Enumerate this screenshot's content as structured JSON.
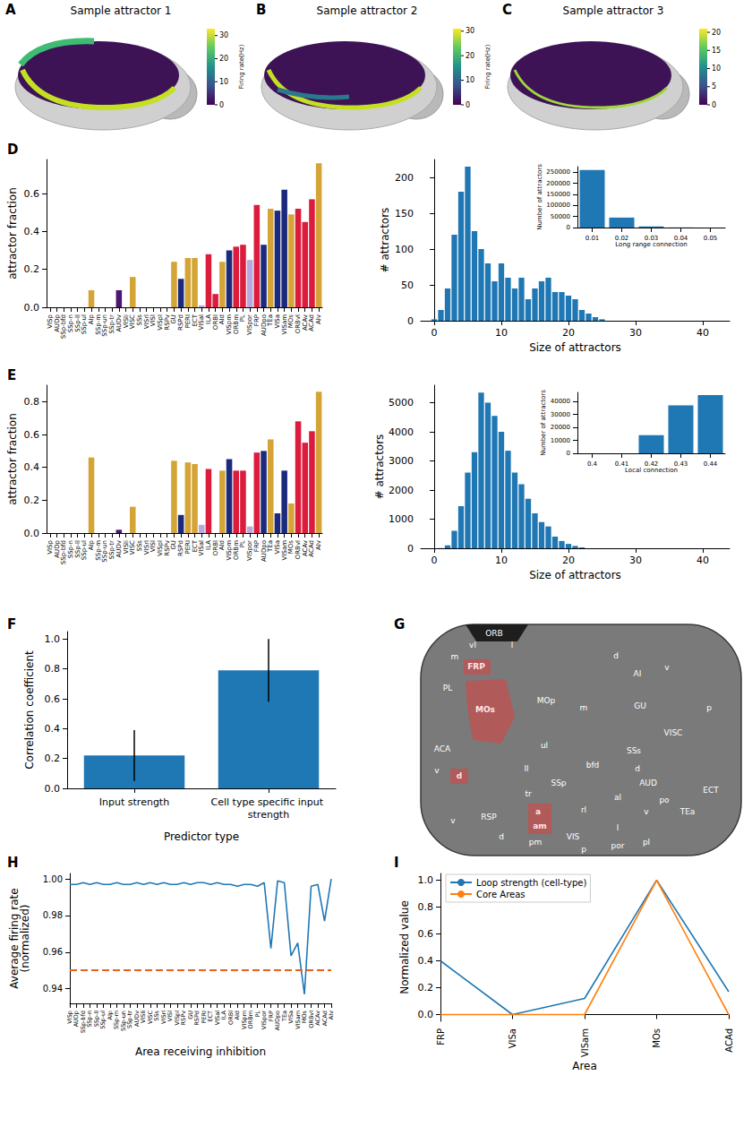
{
  "chart_data": [
    {
      "panel": "A",
      "type": "brain_map",
      "title": "Sample attractor 1",
      "colorbar": {
        "range": [
          0,
          33
        ],
        "ticks": [
          0,
          10,
          20,
          30
        ],
        "label": "Firing rate(Hz)"
      }
    },
    {
      "panel": "B",
      "type": "brain_map",
      "title": "Sample attractor 2",
      "colorbar": {
        "range": [
          0,
          31
        ],
        "ticks": [
          0,
          10,
          20,
          30
        ],
        "label": "Firing rate(Hz)"
      }
    },
    {
      "panel": "C",
      "type": "brain_map",
      "title": "Sample attractor 3",
      "colorbar": {
        "range": [
          0,
          21
        ],
        "ticks": [
          0,
          5,
          10,
          15,
          20
        ]
      }
    },
    {
      "panel": "D",
      "type": "bar",
      "ylabel": "attractor fraction",
      "categories": [
        "VISp",
        "AUDp",
        "SSp-bfd",
        "SSp-n",
        "SSp-ll",
        "SSp-ul",
        "AIp",
        "SSp-m",
        "SSp-un",
        "SSp-tr",
        "AUDv",
        "VISli",
        "VISC",
        "SSs",
        "VISrl",
        "VISl",
        "VISpl",
        "RSPv",
        "GU",
        "RSPd",
        "PERI",
        "ECT",
        "VISal",
        "ILA",
        "ORBl",
        "AId",
        "VISpm",
        "ORBm",
        "PL",
        "VISpor",
        "FRP",
        "AUDpo",
        "TEa",
        "VISa",
        "VISam",
        "MOs",
        "ORBvl",
        "ACAv",
        "ACAd",
        "AIv"
      ],
      "values": [
        0,
        0,
        0,
        0,
        0,
        0,
        0.09,
        0,
        0,
        0,
        0.09,
        0,
        0.16,
        0,
        0,
        0,
        0,
        0,
        0.24,
        0.15,
        0.26,
        0.26,
        0.01,
        0.28,
        0.07,
        0.24,
        0.3,
        0.32,
        0.33,
        0.25,
        0.54,
        0.33,
        0.52,
        0.51,
        0.62,
        0.49,
        0.52,
        0.45,
        0.57,
        0.76
      ],
      "colors": [
        "#1c2a7d",
        "#4a1670",
        "#d4a536",
        "#d4a536",
        "#d4a536",
        "#d4a536",
        "#d4a536",
        "#d4a536",
        "#d4a536",
        "#d4a536",
        "#4a1670",
        "#1c2a7d",
        "#d4a536",
        "#d4a536",
        "#1c2a7d",
        "#1c2a7d",
        "#1c2a7d",
        "#1c2a7d",
        "#d4a536",
        "#1c2a7d",
        "#d4a536",
        "#d4a536",
        "#b7a9e0",
        "#dc1c3c",
        "#dc1c3c",
        "#d4a536",
        "#1c2a7d",
        "#dc1c3c",
        "#dc1c3c",
        "#b7a9e0",
        "#dc1c3c",
        "#1c2a7d",
        "#d4a536",
        "#1c2a7d",
        "#1c2a7d",
        "#d4a536",
        "#dc1c3c",
        "#dc1c3c",
        "#dc1c3c",
        "#d4a536"
      ],
      "ylim": [
        0,
        0.78
      ],
      "yticks": [
        {
          "value": 0,
          "label": "0.0"
        },
        0.2,
        0.4,
        0.6
      ],
      "grid": false
    },
    {
      "type": "histogram",
      "xlabel": "Size of attractors",
      "ylabel": "# attractors",
      "color": "#1f77b4",
      "bins": [
        -0.5,
        0.5,
        1.5,
        2.5,
        3.5,
        4.5,
        5.5,
        6.5,
        7.5,
        8.5,
        9.5,
        10.5,
        11.5,
        12.5,
        13.5,
        14.5,
        15.5,
        16.5,
        17.5,
        18.5,
        19.5,
        20.5,
        21.5,
        22.5,
        23.5,
        24.5,
        25.5
      ],
      "counts": [
        2,
        15,
        45,
        120,
        180,
        215,
        125,
        100,
        80,
        55,
        80,
        60,
        45,
        60,
        30,
        45,
        55,
        60,
        40,
        40,
        35,
        30,
        15,
        10,
        5,
        2
      ],
      "xlim": [
        -2,
        44
      ],
      "xticks": [
        0,
        10,
        20,
        30,
        40
      ],
      "ylim": [
        0,
        225
      ],
      "yticks": [
        0,
        50,
        100,
        150,
        200
      ],
      "grid": false,
      "inset": {
        "type": "bar",
        "xlabel": "Long range connection",
        "ylabel": "Number of attractors",
        "color": "#1f77b4",
        "categories": [
          "0.01",
          "0.02",
          "0.03",
          "0.04",
          "0.05"
        ],
        "values": [
          260000,
          45000,
          5000,
          500,
          0
        ],
        "ylim": [
          0,
          275000
        ],
        "yticks": [
          0,
          50000,
          100000,
          150000,
          200000,
          250000
        ]
      }
    },
    {
      "panel": "E",
      "type": "bar",
      "ylabel": "attractor fraction",
      "categories": [
        "VISp",
        "AUDp",
        "SSp-bfd",
        "SSp-n",
        "SSp-ll",
        "SSp-ul",
        "AIp",
        "SSp-m",
        "SSp-un",
        "SSp-tr",
        "AUDv",
        "VISli",
        "VISC",
        "SSs",
        "VISrl",
        "VISl",
        "VISpl",
        "RSPv",
        "GU",
        "RSPd",
        "PERI",
        "ECT",
        "VISal",
        "ILA",
        "ORBl",
        "AId",
        "VISpm",
        "ORBm",
        "PL",
        "VISpor",
        "FRP",
        "AUDpo",
        "TEa",
        "VISa",
        "VISam",
        "MOs",
        "ORBvl",
        "ACAv",
        "ACAd",
        "AIv"
      ],
      "values": [
        0,
        0,
        0,
        0,
        0,
        0,
        0.46,
        0,
        0,
        0,
        0.02,
        0,
        0.16,
        0,
        0,
        0,
        0,
        0,
        0.44,
        0.11,
        0.43,
        0.42,
        0.05,
        0.39,
        0,
        0.38,
        0.45,
        0.38,
        0.38,
        0.04,
        0.49,
        0.5,
        0.57,
        0.12,
        0.38,
        0.18,
        0.68,
        0.55,
        0.62,
        0.86
      ],
      "colors": [
        "#1c2a7d",
        "#4a1670",
        "#d4a536",
        "#d4a536",
        "#d4a536",
        "#d4a536",
        "#d4a536",
        "#d4a536",
        "#d4a536",
        "#d4a536",
        "#4a1670",
        "#1c2a7d",
        "#d4a536",
        "#d4a536",
        "#1c2a7d",
        "#1c2a7d",
        "#1c2a7d",
        "#1c2a7d",
        "#d4a536",
        "#1c2a7d",
        "#d4a536",
        "#d4a536",
        "#b7a9e0",
        "#dc1c3c",
        "#dc1c3c",
        "#d4a536",
        "#1c2a7d",
        "#dc1c3c",
        "#dc1c3c",
        "#b7a9e0",
        "#dc1c3c",
        "#1c2a7d",
        "#d4a536",
        "#1c2a7d",
        "#1c2a7d",
        "#d4a536",
        "#dc1c3c",
        "#dc1c3c",
        "#dc1c3c",
        "#d4a536"
      ],
      "ylim": [
        0,
        0.9
      ],
      "yticks": [
        {
          "value": 0,
          "label": "0.0"
        },
        0.2,
        0.4,
        0.6,
        0.8
      ],
      "grid": false
    },
    {
      "type": "histogram",
      "xlabel": "Size of attractors",
      "ylabel": "# attractors",
      "color": "#1f77b4",
      "bins": [
        -0.5,
        0.5,
        1.5,
        2.5,
        3.5,
        4.5,
        5.5,
        6.5,
        7.5,
        8.5,
        9.5,
        10.5,
        11.5,
        12.5,
        13.5,
        14.5,
        15.5,
        16.5,
        17.5,
        18.5,
        19.5,
        20.5,
        21.5,
        22.5
      ],
      "counts": [
        0,
        5,
        100,
        600,
        1450,
        2600,
        3300,
        5350,
        5000,
        4550,
        4000,
        3350,
        2600,
        2200,
        1700,
        1200,
        900,
        750,
        400,
        250,
        150,
        80,
        30
      ],
      "xlim": [
        -2,
        44
      ],
      "xticks": [
        0,
        10,
        20,
        30,
        40
      ],
      "ylim": [
        0,
        5600
      ],
      "yticks": [
        0,
        1000,
        2000,
        3000,
        4000,
        5000
      ],
      "grid": false,
      "inset": {
        "type": "bar",
        "xlabel": "Local connection",
        "ylabel": "Number of attractors",
        "color": "#1f77b4",
        "categories": [
          "0.4",
          "0.41",
          "0.42",
          "0.43",
          "0.44"
        ],
        "values": [
          0,
          0,
          14000,
          37000,
          45000
        ],
        "ylim": [
          0,
          47000
        ],
        "yticks": [
          0,
          10000,
          20000,
          30000,
          40000
        ]
      }
    },
    {
      "panel": "F",
      "type": "bar",
      "xlabel": "Predictor type",
      "ylabel": "Correlation coefficient",
      "color": "#1f77b4",
      "categories": [
        "Input strength",
        "Cell type specific input strength"
      ],
      "values": [
        0.22,
        0.79
      ],
      "errors": [
        0.17,
        0.21
      ],
      "ylim": [
        0,
        1.05
      ],
      "yticks": [
        {
          "value": 0,
          "label": "0.0"
        },
        0.2,
        0.4,
        0.6,
        0.8,
        {
          "value": 1,
          "label": "1.0"
        }
      ],
      "grid": false
    },
    {
      "panel": "G",
      "type": "flatmap",
      "labels": [
        {
          "text": "ORB",
          "highlight": false
        },
        {
          "text": "vl",
          "highlight": false
        },
        {
          "text": "l",
          "highlight": false
        },
        {
          "text": "m",
          "highlight": false
        },
        {
          "text": "FRP",
          "highlight": true
        },
        {
          "text": "PL",
          "highlight": false
        },
        {
          "text": "MOs",
          "highlight": true
        },
        {
          "text": "MOp",
          "highlight": false
        },
        {
          "text": "m",
          "highlight": false
        },
        {
          "text": "d",
          "highlight": false
        },
        {
          "text": "AI",
          "highlight": false
        },
        {
          "text": "GU",
          "highlight": false
        },
        {
          "text": "v",
          "highlight": false
        },
        {
          "text": "VISC",
          "highlight": false
        },
        {
          "text": "p",
          "highlight": false
        },
        {
          "text": "SSs",
          "highlight": false
        },
        {
          "text": "ACA",
          "highlight": false
        },
        {
          "text": "v",
          "highlight": false
        },
        {
          "text": "d",
          "highlight": true
        },
        {
          "text": "ul",
          "highlight": false
        },
        {
          "text": "ll",
          "highlight": false
        },
        {
          "text": "SSp",
          "highlight": false
        },
        {
          "text": "bfd",
          "highlight": false
        },
        {
          "text": "tr",
          "highlight": false
        },
        {
          "text": "AUD",
          "highlight": false
        },
        {
          "text": "d",
          "highlight": false
        },
        {
          "text": "po",
          "highlight": false
        },
        {
          "text": "v",
          "highlight": false
        },
        {
          "text": "TEa",
          "highlight": false
        },
        {
          "text": "ECT",
          "highlight": false
        },
        {
          "text": "a",
          "highlight": true
        },
        {
          "text": "am",
          "highlight": true
        },
        {
          "text": "rl",
          "highlight": false
        },
        {
          "text": "al",
          "highlight": false
        },
        {
          "text": "l",
          "highlight": false
        },
        {
          "text": "pm",
          "highlight": false
        },
        {
          "text": "RSP",
          "highlight": false
        },
        {
          "text": "d",
          "highlight": false
        },
        {
          "text": "v",
          "highlight": false
        },
        {
          "text": "VIS",
          "highlight": false
        },
        {
          "text": "p",
          "highlight": false
        },
        {
          "text": "pl",
          "highlight": false
        },
        {
          "text": "por",
          "highlight": false
        }
      ]
    },
    {
      "panel": "H",
      "type": "line",
      "xlabel": "Area receiving inhibition",
      "ylabel": "Average firing rate\n(normalized)",
      "categories": [
        "VISp",
        "AUDp",
        "SSp-bfd",
        "SSp-n",
        "SSp-ll",
        "SSp-ul",
        "AIp",
        "SSp-m",
        "SSp-un",
        "SSp-tr",
        "AUDv",
        "VISli",
        "VISC",
        "SSs",
        "VISrl",
        "VISl",
        "VISpl",
        "RSPv",
        "GU",
        "RSPd",
        "PERI",
        "ECT",
        "VISal",
        "ILA",
        "ORBl",
        "AId",
        "VISpm",
        "ORBm",
        "PL",
        "VISpor",
        "FRP",
        "AUDpo",
        "TEa",
        "VISa",
        "VISam",
        "MOs",
        "ORBvl",
        "ACAv",
        "ACAd",
        "AIv"
      ],
      "series": [
        {
          "color": "#1f77b4",
          "line_style": "solid",
          "values": [
            0.997,
            0.997,
            0.998,
            0.997,
            0.998,
            0.997,
            0.997,
            0.998,
            0.997,
            0.997,
            0.998,
            0.997,
            0.998,
            0.997,
            0.998,
            0.997,
            0.997,
            0.998,
            0.997,
            0.998,
            0.998,
            0.997,
            0.998,
            0.997,
            0.997,
            0.996,
            0.997,
            0.997,
            0.996,
            0.998,
            0.962,
            0.999,
            0.998,
            0.958,
            0.965,
            0.937,
            0.996,
            0.997,
            0.977,
            1.0
          ]
        }
      ],
      "hline": {
        "value": 0.95,
        "color": "#e8601c",
        "line_style": "dashed"
      },
      "ylim": [
        0.932,
        1.003
      ],
      "yticks": [
        0.94,
        0.96,
        0.98,
        {
          "value": 1,
          "label": "1.00"
        }
      ],
      "grid": false
    },
    {
      "panel": "I",
      "type": "line",
      "xlabel": "Area",
      "ylabel": "Normalized value",
      "legend": "upper left",
      "categories": [
        "FRP",
        "VISa",
        "VISam",
        "MOs",
        "ACAd"
      ],
      "series": [
        {
          "name": "Loop strength (cell-type)",
          "color": "#1f77b4",
          "line_style": "solid",
          "values": [
            0.4,
            0.0,
            0.12,
            1.0,
            0.17
          ]
        },
        {
          "name": "Core Areas",
          "color": "#ff7f0e",
          "line_style": "solid",
          "values": [
            0,
            0,
            0,
            1,
            0
          ]
        }
      ],
      "ylim": [
        -0.05,
        1.05
      ],
      "yticks": [
        {
          "value": 0,
          "label": "0.0"
        },
        0.2,
        0.4,
        0.6,
        0.8,
        {
          "value": 1,
          "label": "1.0"
        }
      ],
      "grid": false
    }
  ]
}
